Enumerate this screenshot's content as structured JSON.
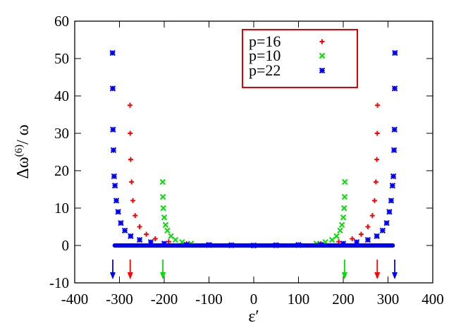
{
  "chart_data": {
    "type": "scatter",
    "xlabel": "ε′",
    "ylabel_main": "Δω",
    "ylabel_sup": "(6)",
    "ylabel_tail": "/ ω",
    "xlim": [
      -400,
      400
    ],
    "ylim": [
      -10,
      60
    ],
    "x_ticks": [
      "-400",
      "-300",
      "-200",
      "-100",
      "0",
      "100",
      "200",
      "300",
      "400"
    ],
    "y_ticks": [
      "-10",
      "0",
      "10",
      "20",
      "30",
      "40",
      "50",
      "60"
    ],
    "grid": false,
    "legend_position": "top-right",
    "legend_border_color": "#e00000",
    "series": [
      {
        "name": "p=16",
        "color": "#ff0000",
        "marker": "plus",
        "x": [
          276.5,
          276,
          275,
          273,
          270,
          265,
          255,
          240,
          220,
          190,
          150,
          100,
          50,
          0,
          -50,
          -100,
          -150,
          -190,
          -220,
          -240,
          -255,
          -265,
          -270,
          -273,
          -275,
          -276,
          -276.5
        ],
        "y": [
          37.5,
          30,
          23,
          17,
          12,
          8,
          5,
          3,
          1.8,
          1.0,
          0.5,
          0.2,
          0.1,
          0,
          0.1,
          0.2,
          0.5,
          1.0,
          1.8,
          3,
          5,
          8,
          12,
          17,
          23,
          30,
          37.5
        ]
      },
      {
        "name": "p=10",
        "color": "#00e000",
        "marker": "cross",
        "x": [
          203.5,
          203,
          202,
          200,
          197,
          193,
          185,
          175,
          160,
          140,
          100,
          50,
          0,
          -50,
          -100,
          -140,
          -160,
          -175,
          -185,
          -193,
          -197,
          -200,
          -202,
          -203,
          -203.5
        ],
        "y": [
          17,
          13,
          10,
          7.5,
          5.5,
          4,
          2.5,
          1.5,
          0.9,
          0.5,
          0.2,
          0.1,
          0,
          0.1,
          0.2,
          0.5,
          0.9,
          1.5,
          2.5,
          4,
          5.5,
          7.5,
          10,
          13,
          17
        ]
      },
      {
        "name": "p=22",
        "color": "#0000ff",
        "marker": "star",
        "x": [
          315.5,
          315,
          314.5,
          313.5,
          312,
          310,
          307,
          303,
          297,
          288,
          275,
          255,
          230,
          200,
          150,
          100,
          50,
          0,
          -50,
          -100,
          -150,
          -200,
          -230,
          -255,
          -275,
          -288,
          -297,
          -303,
          -307,
          -310,
          -312,
          -313.5,
          -314.5,
          -315,
          -315.5
        ],
        "y": [
          51.5,
          42,
          31,
          25.5,
          18.5,
          16,
          12,
          9,
          6,
          4,
          2.5,
          1.5,
          0.9,
          0.5,
          0.2,
          0.1,
          0.05,
          0,
          0.05,
          0.1,
          0.2,
          0.5,
          0.9,
          1.5,
          2.5,
          4,
          6,
          9,
          12,
          16,
          18.5,
          25.5,
          31,
          42,
          51.5
        ]
      }
    ],
    "arrows": [
      {
        "x": -315,
        "color": "#0000ff"
      },
      {
        "x": -276,
        "color": "#ff0000"
      },
      {
        "x": -203,
        "color": "#00e000"
      },
      {
        "x": 203,
        "color": "#00e000"
      },
      {
        "x": 276,
        "color": "#ff0000"
      },
      {
        "x": 315,
        "color": "#0000ff"
      }
    ]
  }
}
